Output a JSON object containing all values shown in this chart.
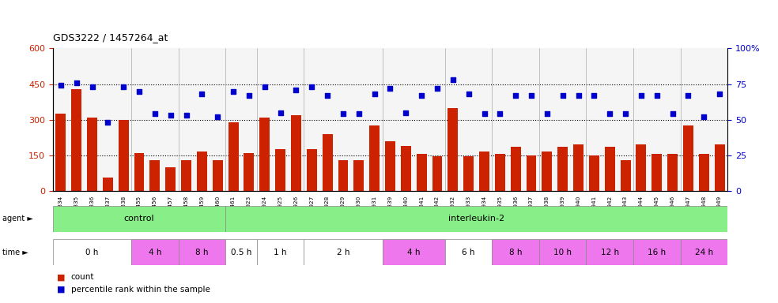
{
  "title": "GDS3222 / 1457264_at",
  "bar_color": "#cc2200",
  "dot_color": "#0000cc",
  "ylim_left": [
    0,
    600
  ],
  "ylim_right": [
    0,
    100
  ],
  "yticks_left": [
    0,
    150,
    300,
    450,
    600
  ],
  "yticks_right": [
    0,
    25,
    50,
    75,
    100
  ],
  "yticklabels_right": [
    "0",
    "25",
    "50",
    "75",
    "100%"
  ],
  "gsm_labels": [
    "GSM108334",
    "GSM108335",
    "GSM108336",
    "GSM108337",
    "GSM108338",
    "GSM183455",
    "GSM183456",
    "GSM183457",
    "GSM183458",
    "GSM183459",
    "GSM183460",
    "GSM183461",
    "GSM140923",
    "GSM140924",
    "GSM140925",
    "GSM140926",
    "GSM140927",
    "GSM140928",
    "GSM140929",
    "GSM140930",
    "GSM140931",
    "GSM108339",
    "GSM108340",
    "GSM108341",
    "GSM108342",
    "GSM140932",
    "GSM140933",
    "GSM140934",
    "GSM140935",
    "GSM140936",
    "GSM140937",
    "GSM140938",
    "GSM140939",
    "GSM140940",
    "GSM140941",
    "GSM140942",
    "GSM140943",
    "GSM140944",
    "GSM140945",
    "GSM140946",
    "GSM140947",
    "GSM140948",
    "GSM140949"
  ],
  "counts": [
    325,
    430,
    310,
    55,
    300,
    160,
    130,
    100,
    130,
    165,
    130,
    290,
    160,
    310,
    175,
    320,
    175,
    240,
    130,
    130,
    275,
    210,
    190,
    155,
    145,
    350,
    145,
    165,
    155,
    185,
    150,
    165,
    185,
    195,
    150,
    185,
    130,
    195,
    155,
    155,
    275,
    155,
    195
  ],
  "percentiles": [
    74,
    76,
    73,
    48,
    73,
    70,
    54,
    53,
    53,
    68,
    52,
    70,
    67,
    73,
    55,
    71,
    73,
    67,
    54,
    54,
    68,
    72,
    55,
    67,
    72,
    78,
    68,
    54,
    54,
    67,
    67,
    54,
    67,
    67,
    67,
    54,
    54,
    67,
    67,
    54,
    67,
    52,
    68
  ],
  "agent_groups": [
    {
      "label": "control",
      "start": 0,
      "end": 11,
      "color": "#88ee88"
    },
    {
      "label": "interleukin-2",
      "start": 11,
      "end": 43,
      "color": "#88ee88"
    }
  ],
  "time_groups": [
    {
      "label": "0 h",
      "start": 0,
      "end": 5,
      "color": "#ffffff"
    },
    {
      "label": "4 h",
      "start": 5,
      "end": 8,
      "color": "#ee77ee"
    },
    {
      "label": "8 h",
      "start": 8,
      "end": 11,
      "color": "#ee77ee"
    },
    {
      "label": "0.5 h",
      "start": 11,
      "end": 13,
      "color": "#ffffff"
    },
    {
      "label": "1 h",
      "start": 13,
      "end": 16,
      "color": "#ffffff"
    },
    {
      "label": "2 h",
      "start": 16,
      "end": 21,
      "color": "#ffffff"
    },
    {
      "label": "4 h",
      "start": 21,
      "end": 25,
      "color": "#ee77ee"
    },
    {
      "label": "6 h",
      "start": 25,
      "end": 28,
      "color": "#ffffff"
    },
    {
      "label": "8 h",
      "start": 28,
      "end": 31,
      "color": "#ee77ee"
    },
    {
      "label": "10 h",
      "start": 31,
      "end": 34,
      "color": "#ee77ee"
    },
    {
      "label": "12 h",
      "start": 34,
      "end": 37,
      "color": "#ee77ee"
    },
    {
      "label": "16 h",
      "start": 37,
      "end": 40,
      "color": "#ee77ee"
    },
    {
      "label": "24 h",
      "start": 40,
      "end": 43,
      "color": "#ee77ee"
    }
  ],
  "bg_color": "#ffffff",
  "legend_items": [
    {
      "label": "count",
      "color": "#cc2200"
    },
    {
      "label": "percentile rank within the sample",
      "color": "#0000cc"
    }
  ],
  "separator_positions": [
    5,
    8,
    11,
    13,
    16,
    21,
    25,
    28,
    31,
    34,
    37,
    40
  ]
}
